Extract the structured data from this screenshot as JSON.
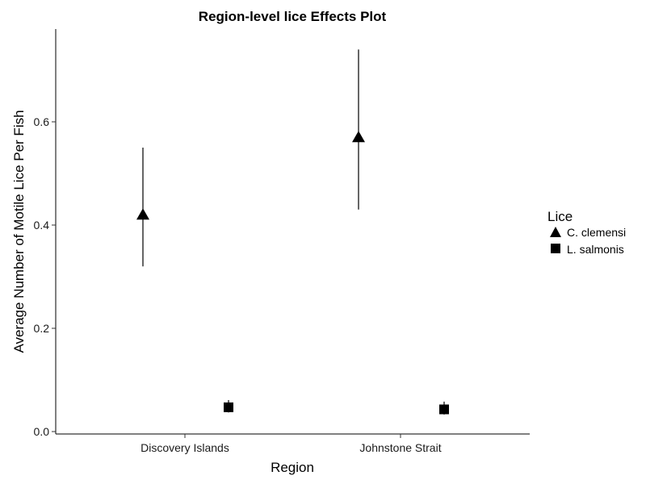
{
  "chart_data": {
    "type": "scatter",
    "title": "Region-level lice Effects Plot",
    "xlabel": "Region",
    "ylabel": "Average Number of Motile Lice Per Fish",
    "categories": [
      "Discovery Islands",
      "Johnstone Strait"
    ],
    "ylim": [
      0,
      0.78
    ],
    "yticks": [
      "0.0",
      "0.2",
      "0.4",
      "0.6"
    ],
    "ytick_values": [
      0,
      0.2,
      0.4,
      0.6
    ],
    "grid": false,
    "legend": {
      "title": "Lice",
      "position": "right",
      "entries": [
        "C. clemensi",
        "L. salmonis"
      ]
    },
    "series": [
      {
        "name": "C. clemensi",
        "marker": "triangle",
        "values": [
          0.42,
          0.57
        ],
        "lower": [
          0.32,
          0.43
        ],
        "upper": [
          0.55,
          0.74
        ]
      },
      {
        "name": "L. salmonis",
        "marker": "square",
        "values": [
          0.047,
          0.043
        ],
        "lower": [
          0.037,
          0.033
        ],
        "upper": [
          0.061,
          0.058
        ]
      }
    ]
  }
}
